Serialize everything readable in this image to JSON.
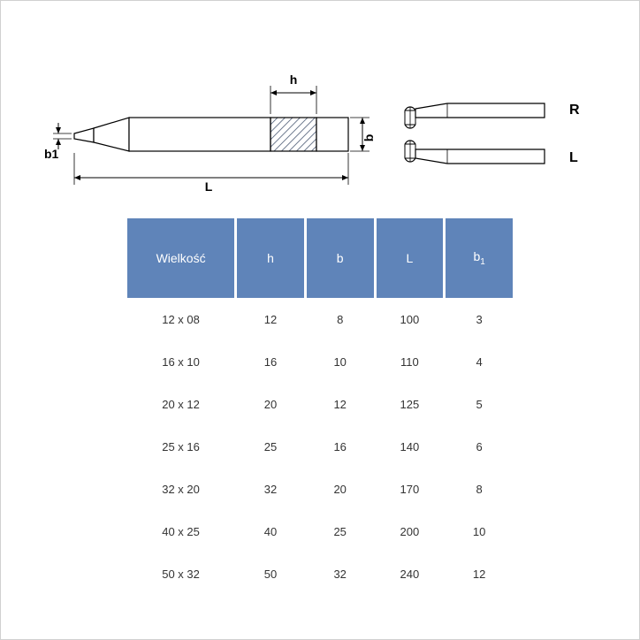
{
  "diagram": {
    "labels": {
      "L": "L",
      "h": "h",
      "b": "b",
      "b1": "b1",
      "R": "R",
      "Lside": "L"
    },
    "colors": {
      "stroke": "#000000",
      "hatch": "#3a4a66",
      "background": "#ffffff",
      "dim_line": "#000000"
    }
  },
  "table": {
    "header_bg": "#5f84b9",
    "header_fg": "#ffffff",
    "cell_fg": "#333333",
    "columns": [
      "Wielkość",
      "h",
      "b",
      "L",
      "b₁"
    ],
    "rows": [
      [
        "12 x 08",
        "12",
        "8",
        "100",
        "3"
      ],
      [
        "16 x 10",
        "16",
        "10",
        "110",
        "4"
      ],
      [
        "20 x 12",
        "20",
        "12",
        "125",
        "5"
      ],
      [
        "25 x 16",
        "25",
        "16",
        "140",
        "6"
      ],
      [
        "32 x 20",
        "32",
        "20",
        "170",
        "8"
      ],
      [
        "40 x 25",
        "40",
        "25",
        "200",
        "10"
      ],
      [
        "50 x 32",
        "50",
        "32",
        "240",
        "12"
      ]
    ]
  }
}
